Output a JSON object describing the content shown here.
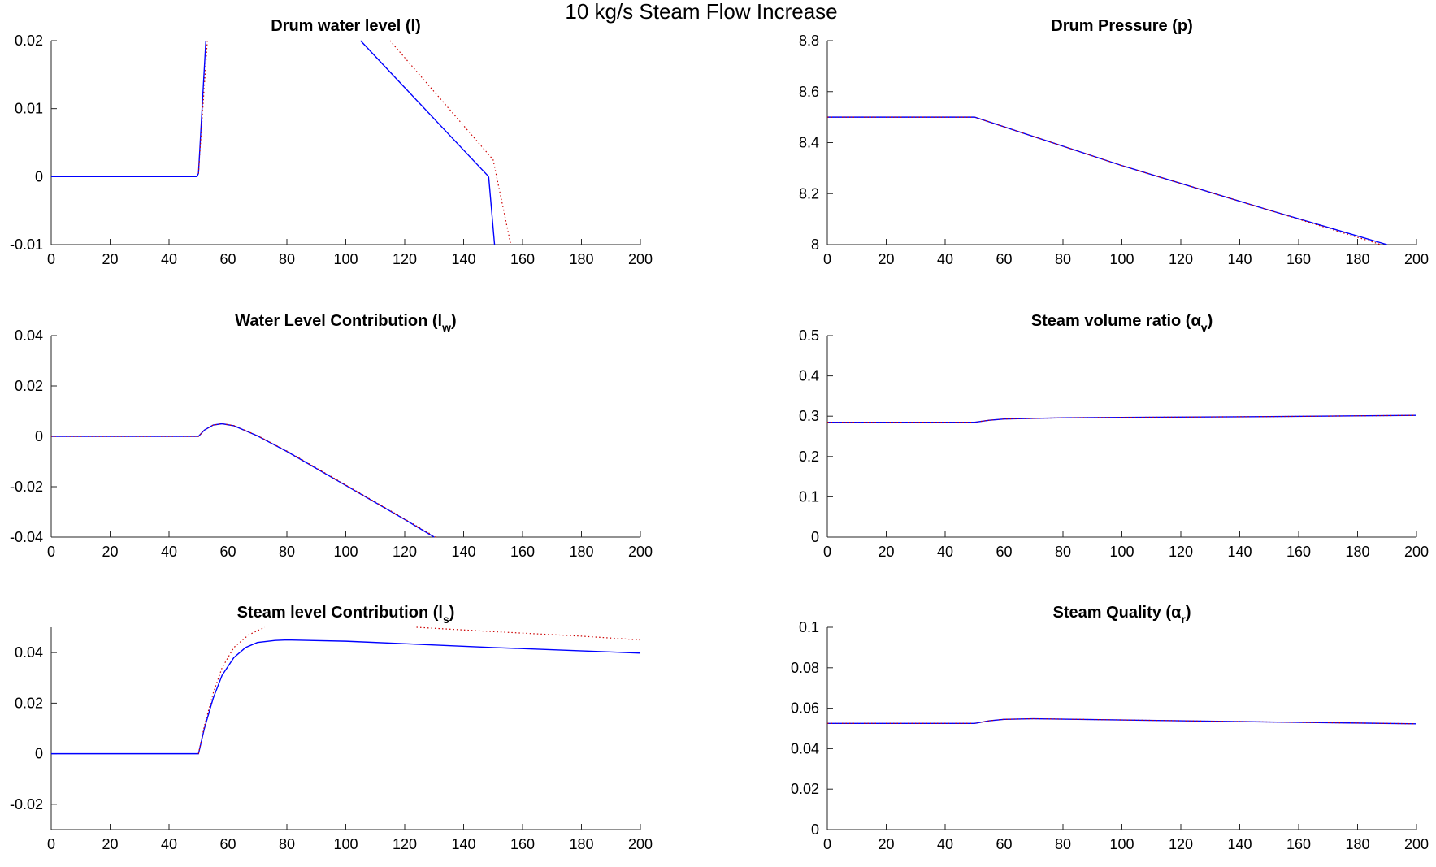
{
  "figure": {
    "title": "10 kg/s Steam Flow Increase"
  },
  "colors": {
    "series_1": "#0000ff",
    "series_2": "#cc0000",
    "axis": "#262626",
    "background": "#ffffff"
  },
  "chart_data": [
    {
      "type": "line",
      "title": "Drum water level (l)",
      "title_main": "Drum water level (l)",
      "title_sub": "",
      "title_tail": "",
      "xlim": [
        0,
        200
      ],
      "ylim": [
        -0.01,
        0.02
      ],
      "xticks": [
        "0",
        "20",
        "40",
        "60",
        "80",
        "100",
        "120",
        "140",
        "160",
        "180",
        "200"
      ],
      "yticks": [
        "-0.01",
        "0",
        "0.01",
        "0.02"
      ],
      "ytick_values": [
        -0.01,
        0,
        0.01,
        0.02
      ],
      "grid": false,
      "series": [
        {
          "style": "solid",
          "color": "#0000ff",
          "segments": [
            [
              [
                0,
                0
              ],
              [
                49.5,
                0
              ],
              [
                50,
                0.0005
              ],
              [
                52.5,
                0.02
              ]
            ],
            [
              [
                105,
                0.02
              ],
              [
                120,
                0.0131
              ],
              [
                140,
                0.0039
              ],
              [
                148.5,
                0
              ]
            ]
          ],
          "extend": [
            [
              148.5,
              0
            ],
            [
              150.5,
              -0.01
            ]
          ]
        },
        {
          "style": "dotted",
          "color": "#cc0000",
          "segments": [
            [
              [
                50,
                0.0005
              ],
              [
                53,
                0.02
              ]
            ],
            [
              [
                115,
                0.02
              ],
              [
                130,
                0.0125
              ],
              [
                150,
                0.0025
              ],
              [
                156,
                -0.01
              ]
            ]
          ]
        }
      ]
    },
    {
      "type": "line",
      "title": "Drum Pressure (p)",
      "title_main": "Drum Pressure (p)",
      "title_sub": "",
      "title_tail": "",
      "xlim": [
        0,
        200
      ],
      "ylim": [
        8,
        8.8
      ],
      "xticks": [
        "0",
        "20",
        "40",
        "60",
        "80",
        "100",
        "120",
        "140",
        "160",
        "180",
        "200"
      ],
      "yticks": [
        "8",
        "8.2",
        "8.4",
        "8.6",
        "8.8"
      ],
      "ytick_values": [
        8,
        8.2,
        8.4,
        8.6,
        8.8
      ],
      "grid": false,
      "series": [
        {
          "style": "solid",
          "color": "#0000ff",
          "segments": [
            [
              [
                0,
                8.5
              ],
              [
                50,
                8.5
              ],
              [
                100,
                8.31
              ],
              [
                150,
                8.135
              ],
              [
                190,
                8.0
              ]
            ]
          ]
        },
        {
          "style": "dotted",
          "color": "#cc0000",
          "segments": [
            [
              [
                0,
                8.5
              ],
              [
                50,
                8.5
              ],
              [
                100,
                8.31
              ],
              [
                150,
                8.135
              ],
              [
                188,
                8.0
              ]
            ]
          ]
        }
      ]
    },
    {
      "type": "line",
      "title": "Water Level Contribution (lw)",
      "title_main": "Water Level Contribution (l",
      "title_sub": "w",
      "title_tail": ")",
      "xlim": [
        0,
        200
      ],
      "ylim": [
        -0.04,
        0.04
      ],
      "xticks": [
        "0",
        "20",
        "40",
        "60",
        "80",
        "100",
        "120",
        "140",
        "160",
        "180",
        "200"
      ],
      "yticks": [
        "-0.04",
        "-0.02",
        "0",
        "0.02",
        "0.04"
      ],
      "ytick_values": [
        -0.04,
        -0.02,
        0,
        0.02,
        0.04
      ],
      "grid": false,
      "series": [
        {
          "style": "solid",
          "color": "#0000ff",
          "segments": [
            [
              [
                0,
                0
              ],
              [
                50,
                0
              ],
              [
                52,
                0.0025
              ],
              [
                55,
                0.0045
              ],
              [
                58,
                0.005
              ],
              [
                62,
                0.0042
              ],
              [
                70,
                0.0002
              ],
              [
                80,
                -0.006
              ],
              [
                100,
                -0.0195
              ],
              [
                120,
                -0.033
              ],
              [
                130,
                -0.04
              ]
            ]
          ]
        },
        {
          "style": "dotted",
          "color": "#cc0000",
          "segments": [
            [
              [
                0,
                0
              ],
              [
                50,
                0
              ],
              [
                52,
                0.0025
              ],
              [
                55,
                0.0045
              ],
              [
                58,
                0.005
              ],
              [
                62,
                0.0043
              ],
              [
                70,
                0.0003
              ],
              [
                80,
                -0.0058
              ],
              [
                100,
                -0.0193
              ],
              [
                120,
                -0.0328
              ],
              [
                130.5,
                -0.04
              ]
            ]
          ]
        }
      ]
    },
    {
      "type": "line",
      "title": "Steam volume ratio (αv)",
      "title_main": "Steam volume ratio (α",
      "title_sub": "v",
      "title_tail": ")",
      "xlim": [
        0,
        200
      ],
      "ylim": [
        0,
        0.5
      ],
      "xticks": [
        "0",
        "20",
        "40",
        "60",
        "80",
        "100",
        "120",
        "140",
        "160",
        "180",
        "200"
      ],
      "yticks": [
        "0",
        "0.1",
        "0.2",
        "0.3",
        "0.4",
        "0.5"
      ],
      "ytick_values": [
        0,
        0.1,
        0.2,
        0.3,
        0.4,
        0.5
      ],
      "grid": false,
      "series": [
        {
          "style": "solid",
          "color": "#0000ff",
          "segments": [
            [
              [
                0,
                0.285
              ],
              [
                50,
                0.285
              ],
              [
                55,
                0.29
              ],
              [
                60,
                0.293
              ],
              [
                80,
                0.296
              ],
              [
                100,
                0.297
              ],
              [
                150,
                0.299
              ],
              [
                200,
                0.302
              ]
            ]
          ]
        },
        {
          "style": "dotted",
          "color": "#cc0000",
          "segments": [
            [
              [
                0,
                0.285
              ],
              [
                50,
                0.285
              ],
              [
                55,
                0.29
              ],
              [
                60,
                0.293
              ],
              [
                80,
                0.296
              ],
              [
                100,
                0.297
              ],
              [
                150,
                0.299
              ],
              [
                200,
                0.302
              ]
            ]
          ]
        }
      ]
    },
    {
      "type": "line",
      "title": "Steam level Contribution (ls)",
      "title_main": "Steam level Contribution (l",
      "title_sub": "s",
      "title_tail": ")",
      "xlim": [
        0,
        200
      ],
      "ylim": [
        -0.03,
        0.05
      ],
      "xticks": [
        "0",
        "20",
        "40",
        "60",
        "80",
        "100",
        "120",
        "140",
        "160",
        "180",
        "200"
      ],
      "yticks": [
        "-0.02",
        "0",
        "0.02",
        "0.04"
      ],
      "ytick_values": [
        -0.02,
        0,
        0.02,
        0.04
      ],
      "grid": false,
      "series": [
        {
          "style": "solid",
          "color": "#0000ff",
          "segments": [
            [
              [
                0,
                0
              ],
              [
                50,
                0
              ],
              [
                52,
                0.01
              ],
              [
                55,
                0.022
              ],
              [
                58,
                0.031
              ],
              [
                62,
                0.038
              ],
              [
                66,
                0.042
              ],
              [
                70,
                0.044
              ],
              [
                76,
                0.0448
              ],
              [
                80,
                0.045
              ],
              [
                100,
                0.0445
              ],
              [
                150,
                0.042
              ],
              [
                200,
                0.0398
              ]
            ]
          ]
        },
        {
          "style": "dotted",
          "color": "#cc0000",
          "segments": [
            [
              [
                50,
                0
              ],
              [
                52,
                0.011
              ],
              [
                55,
                0.024
              ],
              [
                58,
                0.034
              ],
              [
                62,
                0.042
              ],
              [
                67,
                0.047
              ],
              [
                72.5,
                0.05
              ]
            ],
            [
              [
                124,
                0.05
              ],
              [
                150,
                0.0483
              ],
              [
                180,
                0.0465
              ],
              [
                200,
                0.045
              ]
            ]
          ]
        }
      ]
    },
    {
      "type": "line",
      "title": "Steam Quality (αr)",
      "title_main": "Steam Quality (α",
      "title_sub": "r",
      "title_tail": ")",
      "xlim": [
        0,
        200
      ],
      "ylim": [
        0,
        0.1
      ],
      "xticks": [
        "0",
        "20",
        "40",
        "60",
        "80",
        "100",
        "120",
        "140",
        "160",
        "180",
        "200"
      ],
      "yticks": [
        "0",
        "0.02",
        "0.04",
        "0.06",
        "0.08",
        "0.1"
      ],
      "ytick_values": [
        0,
        0.02,
        0.04,
        0.06,
        0.08,
        0.1
      ],
      "grid": false,
      "series": [
        {
          "style": "solid",
          "color": "#0000ff",
          "segments": [
            [
              [
                0,
                0.0525
              ],
              [
                50,
                0.0525
              ],
              [
                55,
                0.0538
              ],
              [
                60,
                0.0545
              ],
              [
                70,
                0.0548
              ],
              [
                100,
                0.0542
              ],
              [
                150,
                0.0532
              ],
              [
                200,
                0.0523
              ]
            ]
          ]
        },
        {
          "style": "dotted",
          "color": "#cc0000",
          "segments": [
            [
              [
                0,
                0.0525
              ],
              [
                50,
                0.0525
              ],
              [
                55,
                0.0538
              ],
              [
                60,
                0.0545
              ],
              [
                70,
                0.0548
              ],
              [
                100,
                0.0542
              ],
              [
                150,
                0.0532
              ],
              [
                200,
                0.0523
              ]
            ]
          ]
        }
      ]
    }
  ]
}
